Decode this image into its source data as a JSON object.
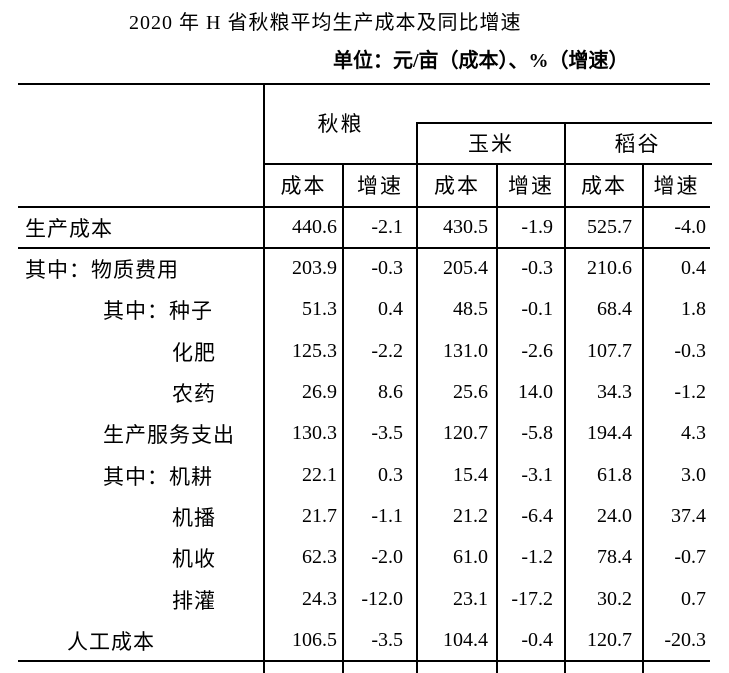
{
  "title": "2020 年 H 省秋粮平均生产成本及同比增速",
  "unit_note": "单位：元/亩（成本）、%（增速）",
  "colors": {
    "text": "#000000",
    "background": "#ffffff",
    "line": "#000000"
  },
  "table": {
    "group_headers": [
      "秋粮",
      "玉米",
      "稻谷"
    ],
    "sub_headers": [
      "成本",
      "增速",
      "成本",
      "增速",
      "成本",
      "增速"
    ],
    "rows": [
      {
        "label": "生产成本",
        "values": [
          "440.6",
          "-2.1",
          "430.5",
          "-1.9",
          "525.7",
          "-4.0"
        ]
      },
      {
        "label": "其中：物质费用",
        "values": [
          "203.9",
          "-0.3",
          "205.4",
          "-0.3",
          "210.6",
          "0.4"
        ]
      },
      {
        "label": "其中：种子",
        "values": [
          "51.3",
          "0.4",
          "48.5",
          "-0.1",
          "68.4",
          "1.8"
        ]
      },
      {
        "label": "化肥",
        "values": [
          "125.3",
          "-2.2",
          "131.0",
          "-2.6",
          "107.7",
          "-0.3"
        ]
      },
      {
        "label": "农药",
        "values": [
          "26.9",
          "8.6",
          "25.6",
          "14.0",
          "34.3",
          "-1.2"
        ]
      },
      {
        "label": "生产服务支出",
        "values": [
          "130.3",
          "-3.5",
          "120.7",
          "-5.8",
          "194.4",
          "4.3"
        ]
      },
      {
        "label": "其中：机耕",
        "values": [
          "22.1",
          "0.3",
          "15.4",
          "-3.1",
          "61.8",
          "3.0"
        ]
      },
      {
        "label": "机播",
        "values": [
          "21.7",
          "-1.1",
          "21.2",
          "-6.4",
          "24.0",
          "37.4"
        ]
      },
      {
        "label": "机收",
        "values": [
          "62.3",
          "-2.0",
          "61.0",
          "-1.2",
          "78.4",
          "-0.7"
        ]
      },
      {
        "label": "排灌",
        "values": [
          "24.3",
          "-12.0",
          "23.1",
          "-17.2",
          "30.2",
          "0.7"
        ]
      },
      {
        "label": "人工成本",
        "values": [
          "106.5",
          "-3.5",
          "104.4",
          "-0.4",
          "120.7",
          "-20.3"
        ]
      }
    ]
  }
}
